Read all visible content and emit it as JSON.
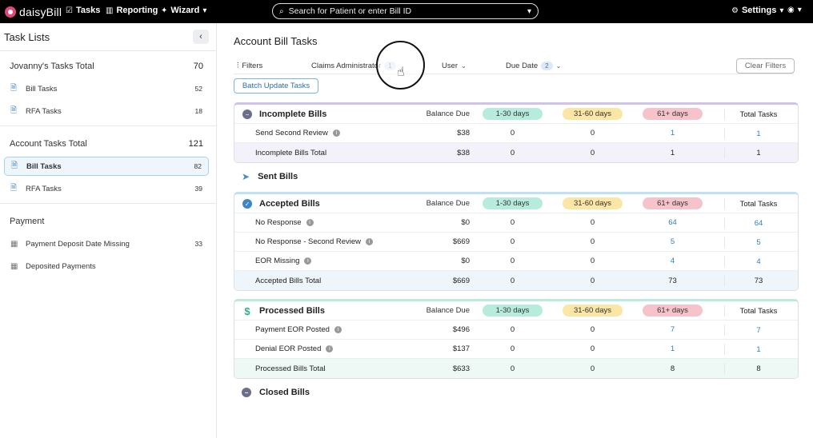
{
  "topbar": {
    "logo_text": "daisyBill",
    "nav": [
      {
        "label": "Tasks",
        "icon": "checkbox-icon"
      },
      {
        "label": "Reporting",
        "icon": "bar-chart-icon"
      },
      {
        "label": "Wizard",
        "icon": "wand-icon"
      }
    ],
    "search_placeholder": "Search for Patient or enter Bill ID",
    "settings_label": "Settings"
  },
  "sidebar": {
    "title": "Task Lists",
    "user_section": {
      "label": "Jovanny's Tasks Total",
      "count": "70",
      "items": [
        {
          "label": "Bill Tasks",
          "count": "52"
        },
        {
          "label": "RFA Tasks",
          "count": "18"
        }
      ]
    },
    "account_section": {
      "label": "Account Tasks Total",
      "count": "121",
      "items": [
        {
          "label": "Bill Tasks",
          "count": "82"
        },
        {
          "label": "RFA Tasks",
          "count": "39"
        }
      ]
    },
    "payment_section": {
      "label": "Payment",
      "items": [
        {
          "label": "Payment Deposit Date Missing",
          "count": "33"
        },
        {
          "label": "Deposited Payments",
          "count": ""
        }
      ]
    }
  },
  "main": {
    "title": "Account Bill Tasks",
    "filters": {
      "label": "Filters",
      "claims_admin": {
        "label": "Claims Administrator",
        "badge": "1"
      },
      "user": {
        "label": "User"
      },
      "due_date": {
        "label": "Due Date",
        "badge": "2"
      },
      "clear": "Clear Filters"
    },
    "batch_update": "Batch Update Tasks",
    "columns": {
      "balance": "Balance Due",
      "d1": "1-30 days",
      "d2": "31-60 days",
      "d3": "61+ days",
      "total": "Total Tasks"
    },
    "incomplete": {
      "title": "Incomplete Bills",
      "rows": [
        {
          "name": "Send Second Review",
          "balance": "$38",
          "d1": "0",
          "d2": "0",
          "d3": "1",
          "total": "1"
        }
      ],
      "total": {
        "name": "Incomplete Bills Total",
        "balance": "$38",
        "d1": "0",
        "d2": "0",
        "d3": "1",
        "total": "1"
      }
    },
    "sent": {
      "title": "Sent Bills"
    },
    "accepted": {
      "title": "Accepted Bills",
      "rows": [
        {
          "name": "No Response",
          "balance": "$0",
          "d1": "0",
          "d2": "0",
          "d3": "64",
          "total": "64"
        },
        {
          "name": "No Response - Second Review",
          "balance": "$669",
          "d1": "0",
          "d2": "0",
          "d3": "5",
          "total": "5"
        },
        {
          "name": "EOR Missing",
          "balance": "$0",
          "d1": "0",
          "d2": "0",
          "d3": "4",
          "total": "4"
        }
      ],
      "total": {
        "name": "Accepted Bills Total",
        "balance": "$669",
        "d1": "0",
        "d2": "0",
        "d3": "73",
        "total": "73"
      }
    },
    "processed": {
      "title": "Processed Bills",
      "rows": [
        {
          "name": "Payment EOR Posted",
          "balance": "$496",
          "d1": "0",
          "d2": "0",
          "d3": "7",
          "total": "7"
        },
        {
          "name": "Denial EOR Posted",
          "balance": "$137",
          "d1": "0",
          "d2": "0",
          "d3": "1",
          "total": "1"
        }
      ],
      "total": {
        "name": "Processed Bills Total",
        "balance": "$633",
        "d1": "0",
        "d2": "0",
        "d3": "8",
        "total": "8"
      }
    },
    "closed": {
      "title": "Closed Bills"
    }
  },
  "colors": {
    "accent": "#2d7fc0",
    "pill_1_30": "#b7ecdd",
    "pill_31_60": "#fbe6a6",
    "pill_61": "#f7c3cb"
  }
}
